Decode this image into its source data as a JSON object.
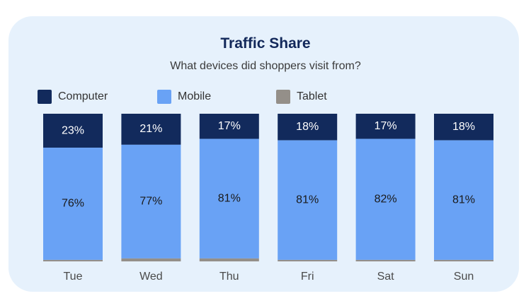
{
  "chart_data": {
    "type": "bar",
    "stacked": true,
    "title": "Traffic Share",
    "subtitle": "What devices did shoppers visit from?",
    "categories": [
      "Tue",
      "Wed",
      "Thu",
      "Fri",
      "Sat",
      "Sun"
    ],
    "series": [
      {
        "name": "Computer",
        "color": "#122a5c",
        "values": [
          23,
          21,
          17,
          18,
          17,
          18
        ],
        "labels": [
          "23%",
          "21%",
          "17%",
          "18%",
          "17%",
          "18%"
        ],
        "label_color": "#ffffff"
      },
      {
        "name": "Mobile",
        "color": "#69a2f5",
        "values": [
          76,
          77,
          81,
          81,
          82,
          81
        ],
        "labels": [
          "76%",
          "77%",
          "81%",
          "81%",
          "82%",
          "81%"
        ],
        "label_color": "#1a1a1a"
      },
      {
        "name": "Tablet",
        "color": "#948f89",
        "values": [
          1,
          2,
          2,
          1,
          1,
          1
        ],
        "labels": [
          "",
          "",
          "",
          "",
          "",
          ""
        ],
        "label_color": "#1a1a1a"
      }
    ],
    "ylim": [
      0,
      100
    ],
    "xlabel": "",
    "ylabel": "",
    "grid": false,
    "legend_position": "top-left"
  }
}
